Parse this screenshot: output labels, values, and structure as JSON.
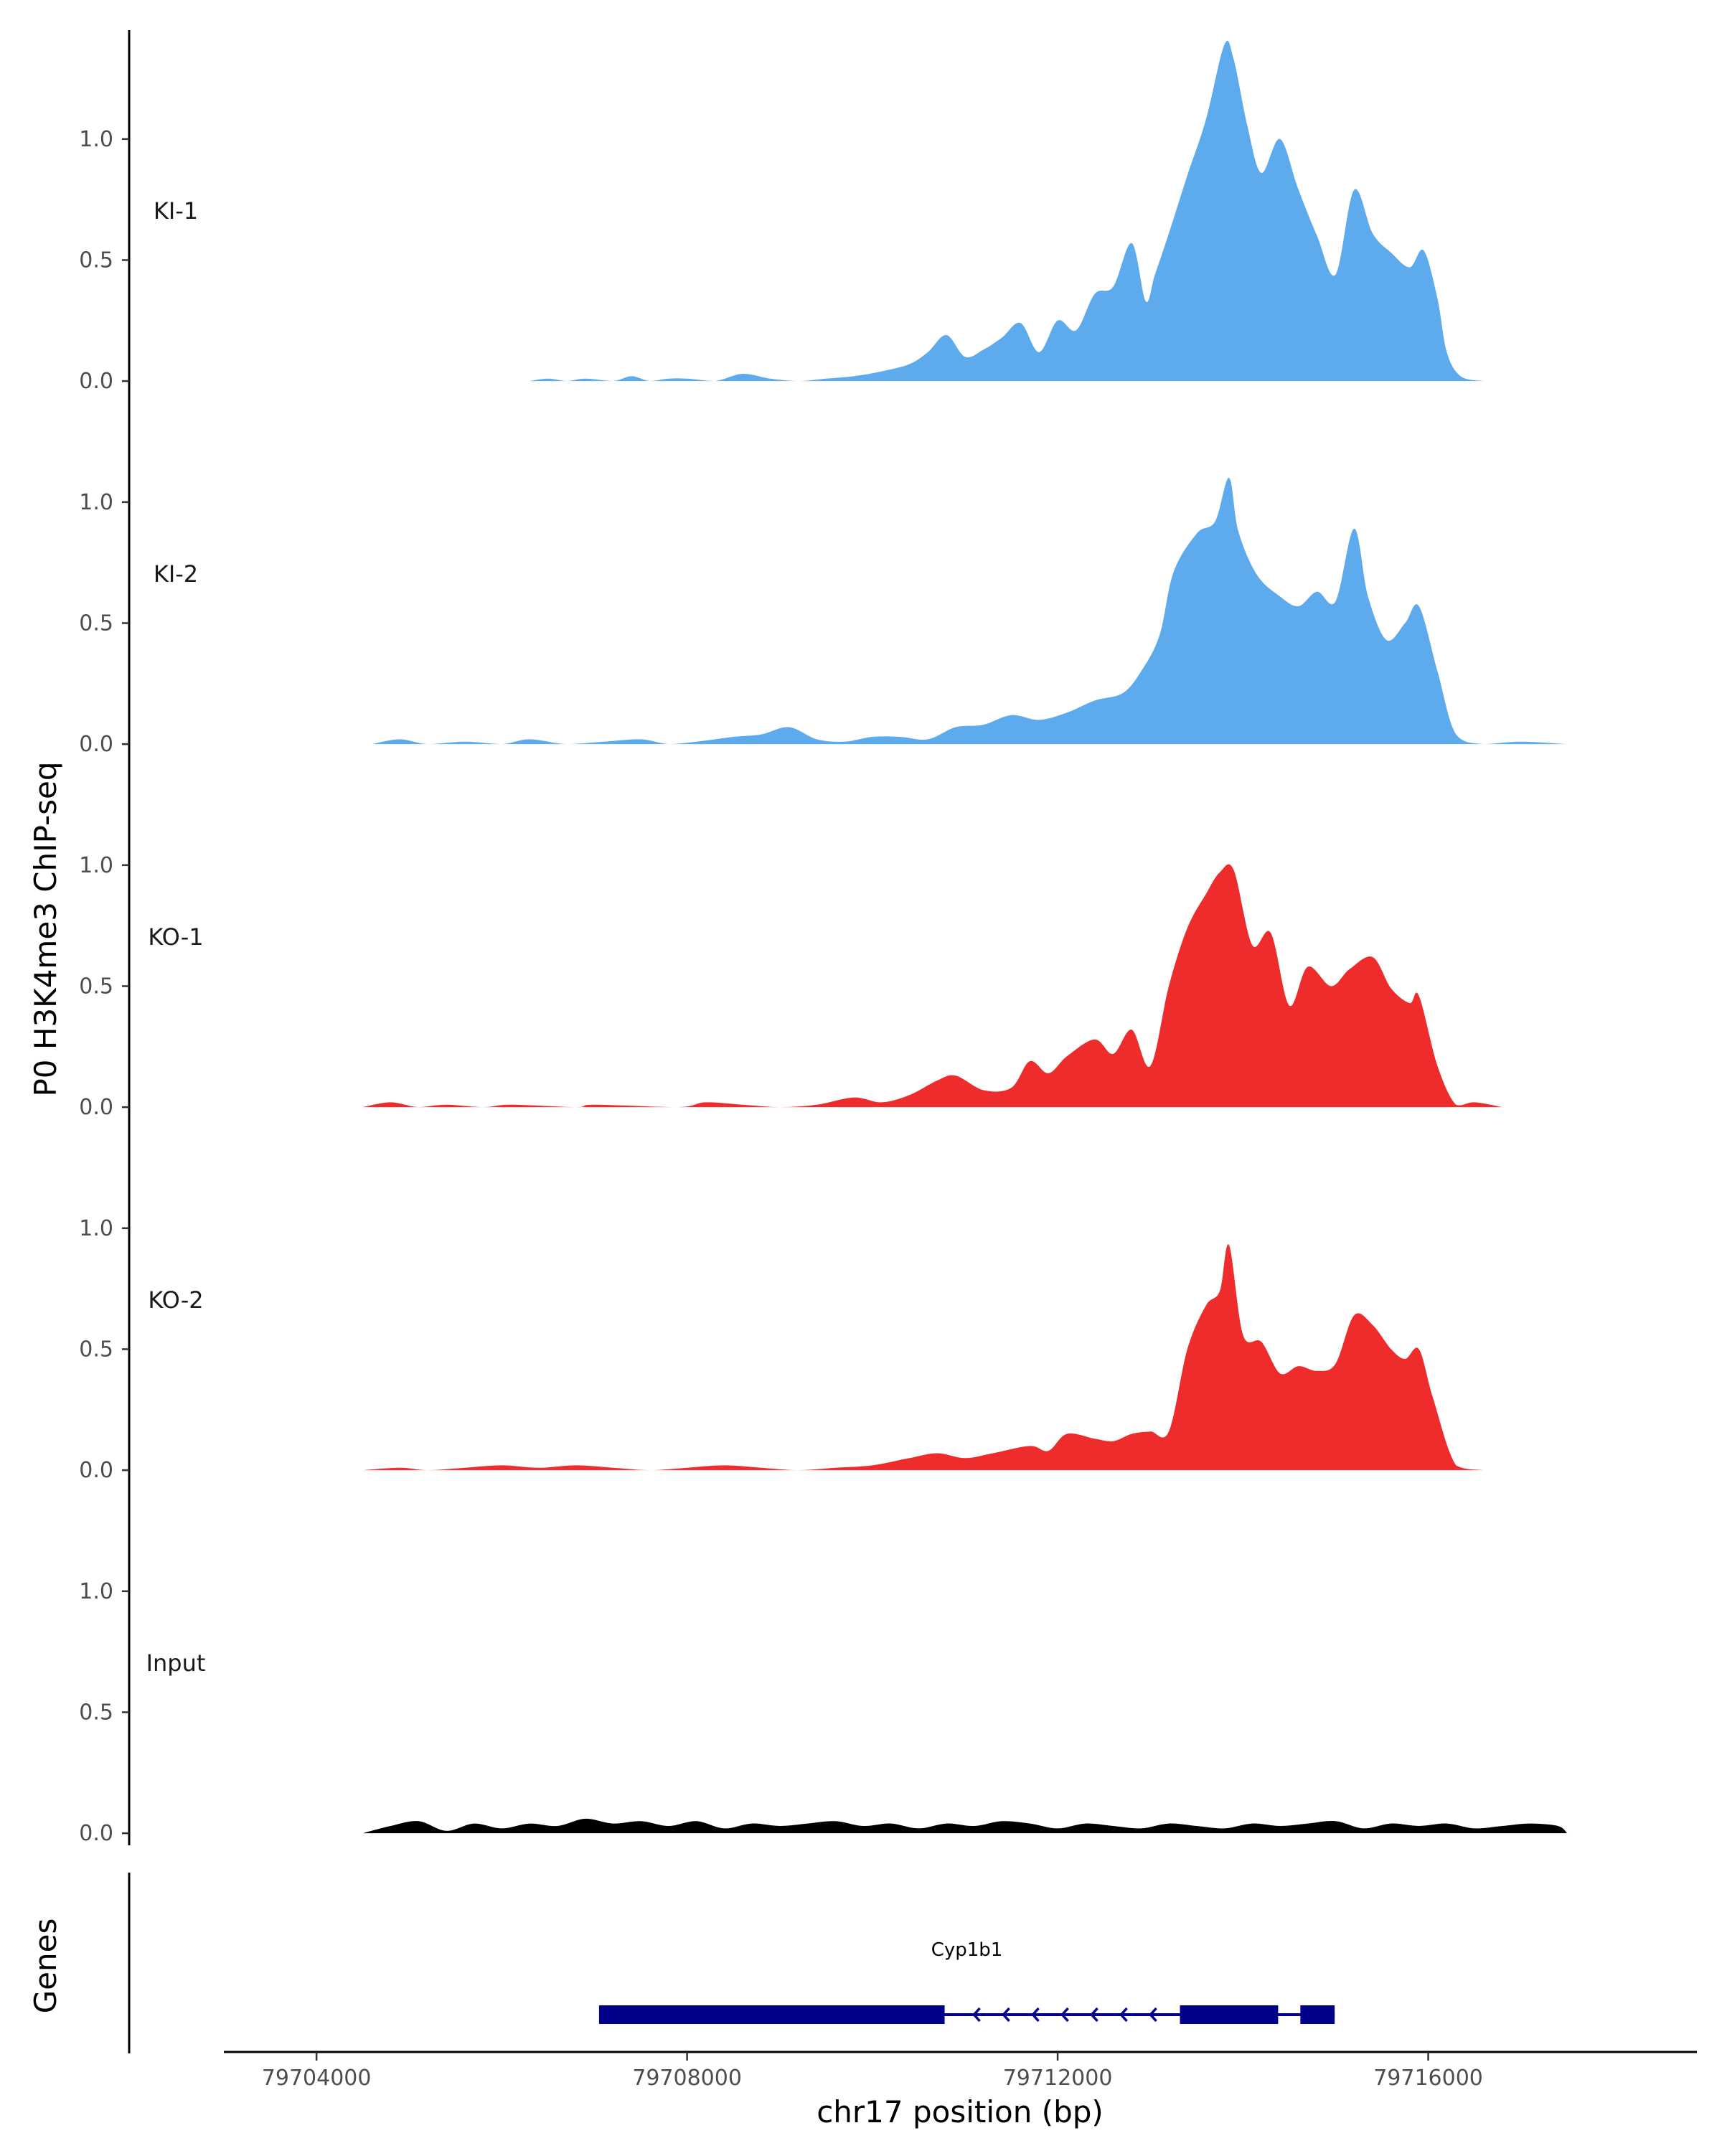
{
  "chart_data": {
    "type": "area",
    "ylabel": "P0 H3K4me3 ChIP-seq",
    "xlabel": "chr17 position (bp)",
    "xlim": [
      79703000,
      79718900
    ],
    "ylim": [
      -0.05,
      1.45
    ],
    "x_ticks": [
      79704000,
      79708000,
      79712000,
      79716000
    ],
    "x_tick_labels": [
      "79704000",
      "79708000",
      "79712000",
      "79716000"
    ],
    "y_ticks": [
      0.0,
      0.5,
      1.0
    ],
    "y_tick_labels": [
      "0.0",
      "0.5",
      "1.0"
    ],
    "grid": false,
    "tracks": [
      {
        "name": "KI-1",
        "color": "#5DABEC",
        "x": [
          79706300,
          79706500,
          79706700,
          79706900,
          79707200,
          79707400,
          79707600,
          79707800,
          79708000,
          79708300,
          79708600,
          79708900,
          79709200,
          79709500,
          79709800,
          79710100,
          79710400,
          79710600,
          79710800,
          79711000,
          79711200,
          79711400,
          79711600,
          79711800,
          79712000,
          79712200,
          79712400,
          79712600,
          79712800,
          79712950,
          79713050,
          79713200,
          79713400,
          79713600,
          79713800,
          79713900,
          79714050,
          79714200,
          79714400,
          79714600,
          79714800,
          79715000,
          79715200,
          79715400,
          79715600,
          79715800,
          79715950,
          79716100,
          79716200,
          79716350,
          79716600
        ],
        "values": [
          0.0,
          0.01,
          0.0,
          0.01,
          0.0,
          0.02,
          0.0,
          0.01,
          0.01,
          0.0,
          0.03,
          0.01,
          0.0,
          0.01,
          0.02,
          0.04,
          0.07,
          0.12,
          0.19,
          0.1,
          0.13,
          0.18,
          0.24,
          0.12,
          0.25,
          0.21,
          0.36,
          0.39,
          0.57,
          0.33,
          0.44,
          0.61,
          0.85,
          1.08,
          1.39,
          1.33,
          1.05,
          0.86,
          1.0,
          0.79,
          0.6,
          0.44,
          0.79,
          0.61,
          0.53,
          0.47,
          0.54,
          0.34,
          0.12,
          0.02,
          0.0
        ]
      },
      {
        "name": "KI-2",
        "color": "#5DABEC",
        "x": [
          79704600,
          79704900,
          79705200,
          79705600,
          79706000,
          79706300,
          79706700,
          79707100,
          79707500,
          79707800,
          79708100,
          79708500,
          79708800,
          79709100,
          79709400,
          79709700,
          79710000,
          79710300,
          79710600,
          79710900,
          79711200,
          79711500,
          79711800,
          79712100,
          79712400,
          79712700,
          79712900,
          79713100,
          79713250,
          79713500,
          79713700,
          79713850,
          79713950,
          79714150,
          79714400,
          79714600,
          79714800,
          79715000,
          79715200,
          79715350,
          79715550,
          79715750,
          79715900,
          79716100,
          79716300,
          79716600,
          79717000,
          79717500
        ],
        "values": [
          0.0,
          0.02,
          0.0,
          0.01,
          0.0,
          0.02,
          0.0,
          0.01,
          0.02,
          0.0,
          0.01,
          0.03,
          0.04,
          0.07,
          0.02,
          0.01,
          0.03,
          0.03,
          0.02,
          0.07,
          0.08,
          0.12,
          0.1,
          0.13,
          0.18,
          0.21,
          0.3,
          0.45,
          0.71,
          0.87,
          0.92,
          1.1,
          0.88,
          0.7,
          0.61,
          0.57,
          0.63,
          0.59,
          0.89,
          0.61,
          0.43,
          0.5,
          0.57,
          0.3,
          0.04,
          0.0,
          0.01,
          0.0
        ]
      },
      {
        "name": "KO-1",
        "color": "#EE2C2C",
        "x": [
          79704500,
          79704800,
          79705100,
          79705400,
          79705800,
          79706100,
          79706800,
          79707000,
          79707900,
          79708200,
          79708600,
          79709000,
          79709400,
          79709800,
          79710100,
          79710400,
          79710700,
          79710900,
          79711200,
          79711500,
          79711700,
          79711900,
          79712100,
          79712400,
          79712600,
          79712800,
          79713000,
          79713200,
          79713400,
          79713600,
          79713750,
          79713900,
          79714100,
          79714300,
          79714500,
          79714700,
          79714950,
          79715150,
          79715400,
          79715600,
          79715800,
          79715900,
          79716100,
          79716300,
          79716500,
          79716800
        ],
        "values": [
          0.0,
          0.02,
          0.0,
          0.01,
          0.0,
          0.01,
          0.0,
          0.01,
          0.0,
          0.02,
          0.01,
          0.0,
          0.01,
          0.04,
          0.02,
          0.05,
          0.11,
          0.13,
          0.07,
          0.08,
          0.19,
          0.14,
          0.21,
          0.28,
          0.22,
          0.32,
          0.17,
          0.5,
          0.74,
          0.88,
          0.97,
          0.98,
          0.67,
          0.72,
          0.42,
          0.58,
          0.5,
          0.57,
          0.62,
          0.49,
          0.43,
          0.46,
          0.17,
          0.01,
          0.02,
          0.0
        ]
      },
      {
        "name": "KO-2",
        "color": "#EE2C2C",
        "x": [
          79704500,
          79704900,
          79705200,
          79705600,
          79706000,
          79706400,
          79706800,
          79707200,
          79707600,
          79708000,
          79708400,
          79708800,
          79709200,
          79709600,
          79710000,
          79710400,
          79710700,
          79711000,
          79711300,
          79711700,
          79711900,
          79712100,
          79712400,
          79712600,
          79712800,
          79713000,
          79713200,
          79713400,
          79713600,
          79713750,
          79713850,
          79714000,
          79714200,
          79714400,
          79714600,
          79714800,
          79715000,
          79715200,
          79715400,
          79715600,
          79715750,
          79715900,
          79716050,
          79716300,
          79716600,
          79716900
        ],
        "values": [
          0.0,
          0.01,
          0.0,
          0.01,
          0.02,
          0.01,
          0.02,
          0.01,
          0.0,
          0.01,
          0.02,
          0.01,
          0.0,
          0.01,
          0.02,
          0.05,
          0.07,
          0.05,
          0.07,
          0.1,
          0.08,
          0.15,
          0.13,
          0.12,
          0.15,
          0.16,
          0.16,
          0.5,
          0.68,
          0.74,
          0.93,
          0.56,
          0.53,
          0.4,
          0.43,
          0.41,
          0.44,
          0.64,
          0.6,
          0.5,
          0.46,
          0.5,
          0.3,
          0.02,
          0.0,
          0.0
        ]
      },
      {
        "name": "Input",
        "color": "#000000",
        "x": [
          79704500,
          79704800,
          79705100,
          79705400,
          79705700,
          79706000,
          79706300,
          79706600,
          79706900,
          79707200,
          79707500,
          79707800,
          79708100,
          79708400,
          79708700,
          79709000,
          79709300,
          79709600,
          79709900,
          79710200,
          79710500,
          79710800,
          79711100,
          79711400,
          79711700,
          79712000,
          79712300,
          79712600,
          79712900,
          79713200,
          79713500,
          79713800,
          79714100,
          79714400,
          79714700,
          79715000,
          79715300,
          79715600,
          79715900,
          79716200,
          79716500,
          79716800,
          79717100,
          79717400,
          79717500
        ],
        "values": [
          0.0,
          0.03,
          0.05,
          0.01,
          0.04,
          0.02,
          0.04,
          0.03,
          0.06,
          0.04,
          0.05,
          0.03,
          0.05,
          0.02,
          0.04,
          0.03,
          0.04,
          0.05,
          0.03,
          0.04,
          0.02,
          0.04,
          0.03,
          0.05,
          0.04,
          0.02,
          0.04,
          0.03,
          0.02,
          0.04,
          0.03,
          0.02,
          0.04,
          0.03,
          0.04,
          0.05,
          0.02,
          0.04,
          0.03,
          0.04,
          0.02,
          0.03,
          0.04,
          0.03,
          0.0
        ]
      }
    ],
    "genes_track": {
      "label": "Genes",
      "genes": [
        {
          "name": "Cyp1b1",
          "strand": "-",
          "start": 79707050,
          "end": 79714990,
          "color": "#00008B",
          "exons": [
            [
              79707050,
              79710780
            ],
            [
              79713320,
              79714380
            ],
            [
              79714620,
              79714990
            ]
          ]
        }
      ]
    }
  }
}
